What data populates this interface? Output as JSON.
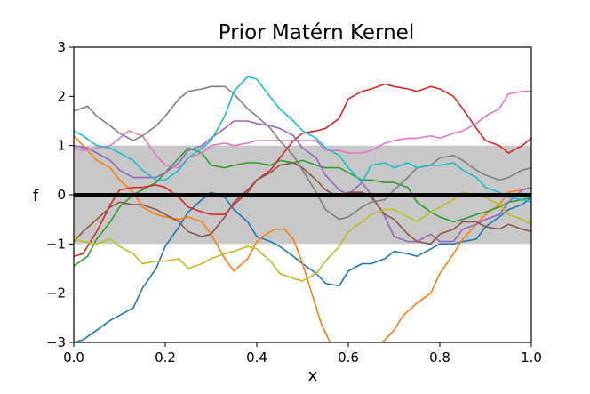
{
  "chart_data": {
    "type": "line",
    "title": "Prior Matérn Kernel",
    "xlabel": "x",
    "ylabel": "f",
    "xlim": [
      0.0,
      1.0
    ],
    "ylim": [
      -3,
      3
    ],
    "x_ticks": [
      "0.0",
      "0.2",
      "0.4",
      "0.6",
      "0.8",
      "1.0"
    ],
    "y_ticks": [
      "−3",
      "−2",
      "−1",
      "0",
      "1",
      "2",
      "3"
    ],
    "x_tick_values": [
      0.0,
      0.2,
      0.4,
      0.6,
      0.8,
      1.0
    ],
    "y_tick_values": [
      -3,
      -2,
      -1,
      0,
      1,
      2,
      3
    ],
    "grid": false,
    "band": {
      "lower": -1,
      "upper": 1,
      "color": "#c8c8c8"
    },
    "mean": {
      "value": 0,
      "color": "#000000"
    },
    "series": [
      {
        "color": "#1f77b4",
        "x": [
          0.0,
          0.02,
          0.05,
          0.08,
          0.1,
          0.13,
          0.15,
          0.18,
          0.2,
          0.23,
          0.25,
          0.28,
          0.3,
          0.33,
          0.35,
          0.38,
          0.4,
          0.43,
          0.45,
          0.48,
          0.5,
          0.53,
          0.55,
          0.58,
          0.6,
          0.63,
          0.65,
          0.68,
          0.7,
          0.73,
          0.75,
          0.78,
          0.8,
          0.83,
          0.85,
          0.88,
          0.9,
          0.93,
          0.95,
          0.98,
          1.0
        ],
        "y": [
          -3.0,
          -2.95,
          -2.75,
          -2.55,
          -2.45,
          -2.3,
          -1.9,
          -1.5,
          -1.05,
          -0.65,
          -0.35,
          -0.1,
          0.05,
          -0.05,
          -0.3,
          -0.55,
          -0.85,
          -0.95,
          -1.05,
          -1.25,
          -1.4,
          -1.6,
          -1.8,
          -1.85,
          -1.55,
          -1.4,
          -1.4,
          -1.3,
          -1.15,
          -1.2,
          -1.25,
          -1.1,
          -1.0,
          -1.0,
          -0.95,
          -0.9,
          -0.65,
          -0.45,
          -0.3,
          -0.2,
          -0.05
        ]
      },
      {
        "color": "#ff7f0e",
        "x": [
          0.0,
          0.02,
          0.05,
          0.08,
          0.1,
          0.13,
          0.15,
          0.18,
          0.2,
          0.23,
          0.25,
          0.28,
          0.3,
          0.33,
          0.35,
          0.38,
          0.4,
          0.42,
          0.44,
          0.46,
          0.48,
          0.5,
          0.52,
          0.54,
          0.56,
          0.58,
          0.6,
          0.62,
          0.64,
          0.66,
          0.68,
          0.7,
          0.72,
          0.75,
          0.78,
          0.8,
          0.83,
          0.85,
          0.88,
          0.9,
          0.93,
          0.95,
          0.98,
          1.0
        ],
        "y": [
          1.2,
          1.0,
          0.7,
          0.55,
          0.3,
          0.05,
          -0.25,
          -0.4,
          -0.45,
          -0.5,
          -0.45,
          -0.55,
          -0.8,
          -1.3,
          -1.55,
          -1.3,
          -0.95,
          -0.8,
          -0.7,
          -0.7,
          -0.9,
          -1.4,
          -2.0,
          -2.6,
          -3.0,
          -3.3,
          -3.5,
          -3.5,
          -3.3,
          -3.1,
          -2.95,
          -2.75,
          -2.45,
          -2.2,
          -2.0,
          -1.6,
          -1.2,
          -0.9,
          -0.6,
          -0.4,
          -0.2,
          0.05,
          0.1,
          0.15
        ]
      },
      {
        "color": "#2ca02c",
        "x": [
          0.0,
          0.03,
          0.05,
          0.08,
          0.1,
          0.13,
          0.15,
          0.18,
          0.2,
          0.23,
          0.25,
          0.28,
          0.3,
          0.33,
          0.35,
          0.38,
          0.4,
          0.43,
          0.45,
          0.48,
          0.5,
          0.53,
          0.55,
          0.58,
          0.6,
          0.63,
          0.65,
          0.68,
          0.7,
          0.73,
          0.75,
          0.78,
          0.8,
          0.83,
          0.85,
          0.88,
          0.9,
          0.93,
          0.95,
          0.98,
          1.0
        ],
        "y": [
          -1.45,
          -1.25,
          -0.9,
          -0.55,
          -0.25,
          0.0,
          0.1,
          0.25,
          0.45,
          0.75,
          0.95,
          0.85,
          0.6,
          0.55,
          0.6,
          0.65,
          0.65,
          0.6,
          0.7,
          0.65,
          0.7,
          0.6,
          0.55,
          0.55,
          0.45,
          0.3,
          0.3,
          0.25,
          0.25,
          0.15,
          -0.15,
          -0.35,
          -0.45,
          -0.55,
          -0.5,
          -0.4,
          -0.35,
          -0.25,
          -0.15,
          -0.1,
          -0.05
        ]
      },
      {
        "color": "#d62728",
        "x": [
          0.0,
          0.02,
          0.05,
          0.08,
          0.1,
          0.13,
          0.15,
          0.18,
          0.2,
          0.23,
          0.25,
          0.28,
          0.3,
          0.33,
          0.35,
          0.38,
          0.4,
          0.43,
          0.45,
          0.48,
          0.5,
          0.53,
          0.55,
          0.58,
          0.6,
          0.63,
          0.65,
          0.68,
          0.7,
          0.73,
          0.75,
          0.78,
          0.8,
          0.83,
          0.85,
          0.88,
          0.9,
          0.93,
          0.95,
          0.98,
          1.0
        ],
        "y": [
          -1.25,
          -1.2,
          -0.75,
          -0.2,
          0.1,
          0.15,
          0.15,
          0.2,
          0.15,
          -0.05,
          -0.25,
          -0.35,
          -0.4,
          -0.4,
          -0.2,
          0.05,
          0.3,
          0.5,
          0.75,
          1.1,
          1.25,
          1.3,
          1.35,
          1.55,
          1.95,
          2.1,
          2.15,
          2.25,
          2.2,
          2.15,
          2.1,
          2.2,
          2.15,
          2.0,
          1.75,
          1.35,
          1.1,
          1.0,
          0.85,
          1.0,
          1.15
        ]
      },
      {
        "color": "#9467bd",
        "x": [
          0.0,
          0.03,
          0.05,
          0.08,
          0.1,
          0.13,
          0.15,
          0.18,
          0.2,
          0.23,
          0.25,
          0.28,
          0.3,
          0.33,
          0.35,
          0.38,
          0.4,
          0.43,
          0.45,
          0.48,
          0.5,
          0.53,
          0.55,
          0.58,
          0.6,
          0.63,
          0.65,
          0.68,
          0.7,
          0.73,
          0.75,
          0.78,
          0.8,
          0.83,
          0.85,
          0.88,
          0.9,
          0.93,
          0.95,
          0.98,
          1.0
        ],
        "y": [
          1.0,
          0.95,
          0.85,
          0.7,
          0.5,
          0.35,
          0.35,
          0.35,
          0.45,
          0.65,
          0.9,
          1.0,
          1.15,
          1.35,
          1.5,
          1.5,
          1.45,
          1.4,
          1.35,
          1.2,
          0.95,
          0.75,
          0.4,
          0.1,
          0.0,
          0.25,
          0.0,
          -0.45,
          -0.85,
          -0.95,
          -0.95,
          -0.8,
          -0.95,
          -0.95,
          -0.7,
          -0.6,
          -0.5,
          -0.4,
          -0.15,
          0.1,
          0.15
        ]
      },
      {
        "color": "#8c564b",
        "x": [
          0.0,
          0.02,
          0.05,
          0.08,
          0.1,
          0.13,
          0.15,
          0.18,
          0.2,
          0.23,
          0.25,
          0.28,
          0.3,
          0.33,
          0.35,
          0.38,
          0.4,
          0.43,
          0.45,
          0.48,
          0.5,
          0.53,
          0.55,
          0.58,
          0.6,
          0.63,
          0.65,
          0.68,
          0.7,
          0.73,
          0.75,
          0.78,
          0.8,
          0.83,
          0.85,
          0.88,
          0.9,
          0.93,
          0.95,
          0.98,
          1.0
        ],
        "y": [
          -0.95,
          -0.75,
          -0.5,
          -0.25,
          -0.15,
          -0.2,
          -0.2,
          -0.3,
          -0.4,
          -0.55,
          -0.75,
          -0.85,
          -0.8,
          -0.45,
          -0.15,
          0.1,
          0.3,
          0.45,
          0.6,
          0.65,
          0.55,
          0.3,
          0.1,
          -0.05,
          0.05,
          0.05,
          -0.05,
          -0.4,
          -0.5,
          -0.8,
          -0.95,
          -1.0,
          -0.8,
          -0.7,
          -0.55,
          -0.55,
          -0.65,
          -0.7,
          -0.6,
          -0.7,
          -0.75
        ]
      },
      {
        "color": "#e377c2",
        "x": [
          0.0,
          0.02,
          0.05,
          0.08,
          0.1,
          0.12,
          0.15,
          0.18,
          0.2,
          0.23,
          0.25,
          0.28,
          0.3,
          0.33,
          0.35,
          0.38,
          0.4,
          0.43,
          0.45,
          0.48,
          0.5,
          0.53,
          0.55,
          0.58,
          0.6,
          0.63,
          0.65,
          0.68,
          0.7,
          0.73,
          0.75,
          0.78,
          0.8,
          0.83,
          0.85,
          0.88,
          0.9,
          0.93,
          0.95,
          0.98,
          1.0
        ],
        "y": [
          0.95,
          0.9,
          0.95,
          1.0,
          1.15,
          1.3,
          1.2,
          0.8,
          0.6,
          0.55,
          0.75,
          0.85,
          1.0,
          1.05,
          1.0,
          1.05,
          1.1,
          1.1,
          1.1,
          1.1,
          1.1,
          1.1,
          0.9,
          0.9,
          0.85,
          0.85,
          0.9,
          1.05,
          1.1,
          1.15,
          1.15,
          1.2,
          1.15,
          1.25,
          1.3,
          1.45,
          1.6,
          1.75,
          2.05,
          2.1,
          2.1
        ]
      },
      {
        "color": "#7f7f7f",
        "x": [
          0.0,
          0.03,
          0.05,
          0.08,
          0.1,
          0.13,
          0.15,
          0.18,
          0.2,
          0.23,
          0.25,
          0.28,
          0.3,
          0.33,
          0.35,
          0.38,
          0.4,
          0.43,
          0.45,
          0.48,
          0.5,
          0.53,
          0.55,
          0.58,
          0.6,
          0.63,
          0.65,
          0.68,
          0.7,
          0.73,
          0.75,
          0.78,
          0.8,
          0.83,
          0.85,
          0.88,
          0.9,
          0.93,
          0.95,
          0.98,
          1.0
        ],
        "y": [
          1.7,
          1.8,
          1.6,
          1.4,
          1.25,
          1.1,
          1.2,
          1.4,
          1.6,
          1.95,
          2.1,
          2.15,
          2.2,
          2.2,
          2.05,
          1.75,
          1.6,
          1.35,
          1.1,
          0.8,
          0.5,
          0.05,
          -0.3,
          -0.5,
          -0.45,
          -0.25,
          -0.15,
          -0.1,
          0.1,
          0.35,
          0.55,
          0.6,
          0.75,
          0.8,
          0.7,
          0.5,
          0.4,
          0.3,
          0.35,
          0.5,
          0.55
        ]
      },
      {
        "color": "#bcbd22",
        "x": [
          0.0,
          0.02,
          0.05,
          0.08,
          0.1,
          0.13,
          0.15,
          0.18,
          0.2,
          0.23,
          0.25,
          0.28,
          0.3,
          0.33,
          0.35,
          0.38,
          0.4,
          0.43,
          0.45,
          0.48,
          0.5,
          0.53,
          0.55,
          0.58,
          0.6,
          0.63,
          0.65,
          0.68,
          0.7,
          0.73,
          0.75,
          0.78,
          0.8,
          0.83,
          0.85,
          0.88,
          0.9,
          0.93,
          0.95,
          0.98,
          1.0
        ],
        "y": [
          -0.9,
          -0.95,
          -1.0,
          -0.9,
          -1.05,
          -1.2,
          -1.4,
          -1.35,
          -1.35,
          -1.3,
          -1.5,
          -1.4,
          -1.3,
          -1.2,
          -1.15,
          -1.05,
          -1.1,
          -1.35,
          -1.6,
          -1.7,
          -1.75,
          -1.6,
          -1.35,
          -1.05,
          -0.75,
          -0.55,
          -0.4,
          -0.3,
          -0.3,
          -0.45,
          -0.55,
          -0.35,
          -0.25,
          -0.1,
          0.05,
          0.0,
          -0.05,
          -0.2,
          -0.4,
          -0.5,
          -0.6
        ]
      },
      {
        "color": "#17becf",
        "x": [
          0.0,
          0.02,
          0.05,
          0.08,
          0.1,
          0.13,
          0.15,
          0.18,
          0.2,
          0.23,
          0.25,
          0.28,
          0.3,
          0.33,
          0.35,
          0.38,
          0.4,
          0.42,
          0.45,
          0.48,
          0.5,
          0.53,
          0.55,
          0.58,
          0.6,
          0.63,
          0.65,
          0.68,
          0.7,
          0.73,
          0.75,
          0.78,
          0.8,
          0.83,
          0.85,
          0.88,
          0.9,
          0.93,
          0.95,
          0.98,
          1.0
        ],
        "y": [
          1.3,
          1.2,
          1.0,
          0.95,
          0.85,
          0.7,
          0.5,
          0.3,
          0.3,
          0.5,
          0.75,
          0.95,
          1.1,
          1.6,
          2.1,
          2.4,
          2.35,
          2.1,
          1.75,
          1.5,
          1.3,
          1.15,
          0.95,
          0.8,
          0.55,
          0.25,
          0.6,
          0.65,
          0.55,
          0.65,
          0.55,
          0.6,
          0.6,
          0.65,
          0.5,
          0.35,
          0.15,
          0.05,
          -0.05,
          -0.1,
          -0.15
        ]
      }
    ]
  }
}
